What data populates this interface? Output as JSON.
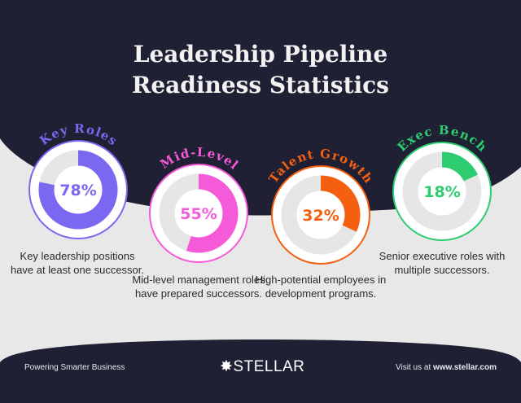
{
  "title_line1": "Leadership Pipeline",
  "title_line2": "Readiness Statistics",
  "stats": [
    {
      "label": "Key Roles",
      "value": 78,
      "value_text": "78%",
      "color": "#7b68f0",
      "description": "Key leadership positions have at least one successor."
    },
    {
      "label": "Mid-Level",
      "value": 55,
      "value_text": "55%",
      "color": "#f55ad8",
      "description": "Mid-level management roles have prepared successors."
    },
    {
      "label": "Talent Growth",
      "value": 32,
      "value_text": "32%",
      "color": "#f4600f",
      "description": "High-potential employees in development programs."
    },
    {
      "label": "Exec Bench",
      "value": 18,
      "value_text": "18%",
      "color": "#2ecc71",
      "description": "Senior executive roles with multiple successors."
    }
  ],
  "footer": {
    "tagline": "Powering Smarter Business",
    "brand": "STELLAR",
    "visit_prefix": "Visit us at ",
    "website": "www.stellar.com"
  },
  "colors": {
    "dark": "#1f2033",
    "light": "#e8e8e8",
    "track": "#e6e6e6"
  }
}
